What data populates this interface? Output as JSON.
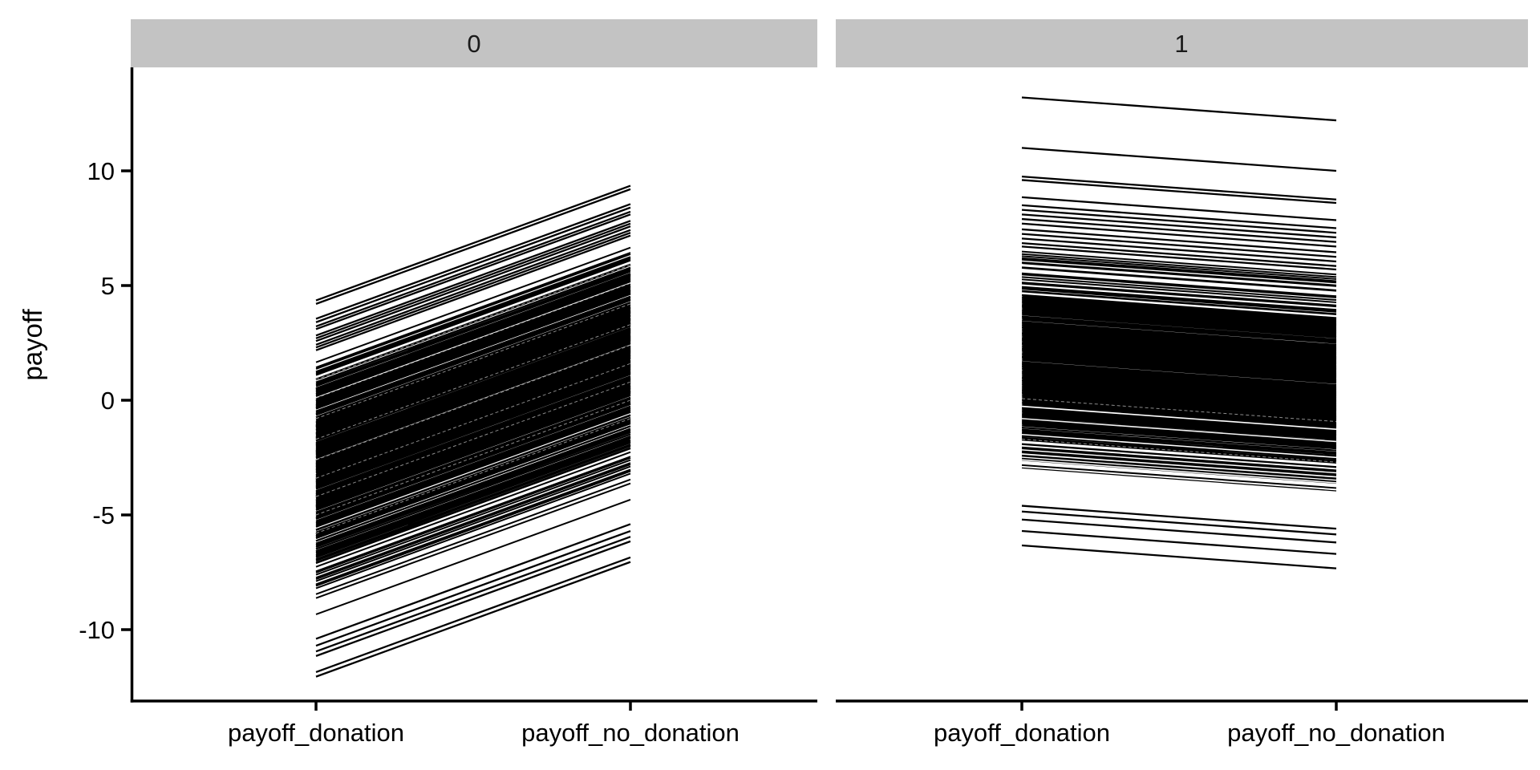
{
  "figure": {
    "background_color": "#FFFFFF",
    "panel_background": "#FFFFFF",
    "strip_background": "#C3C3C3",
    "axis_color": "#000000"
  },
  "chart_data": {
    "type": "line",
    "subtype": "paired-slopegraph-faceted",
    "title": "",
    "ylabel": "payoff",
    "xlabel": "",
    "x_categories": [
      "payoff_donation",
      "payoff_no_donation"
    ],
    "y_tick_labels": [
      "10",
      "5",
      "0",
      "-5",
      "-10"
    ],
    "y_tick_values": [
      10,
      5,
      0,
      -5,
      -10
    ],
    "ylim": [
      -13.1,
      14.5
    ],
    "grid": "off",
    "legend": "none",
    "line_color": "#000000",
    "gap_color": "#FFFFFF",
    "seed": 7,
    "facets": [
      {
        "label": "0",
        "shift_no_donation_minus_donation": 5.0,
        "payoff_donation_range": [
          -12.05,
          4.35
        ],
        "payoff_no_donation_range": [
          -7.05,
          9.35
        ],
        "mass": {
          "n": 390,
          "mean": -2.7,
          "sd": 2.55,
          "clip_min": -10.2,
          "clip_max": 1.8
        },
        "outlier_donation_values": [
          4.35,
          4.2,
          3.55,
          3.4,
          3.22,
          3.1,
          2.82,
          2.7,
          2.58,
          2.42,
          2.3,
          2.18,
          -10.4,
          -10.7,
          -10.95,
          -11.15,
          -11.85,
          -12.05
        ],
        "gap_streak_values_faint": [
          0.9,
          0.1,
          -0.8,
          -1.7,
          -2.6,
          -3.4,
          -4.2,
          -5.0,
          -5.8
        ],
        "gap_streak_values_bright": []
      },
      {
        "label": "1",
        "shift_no_donation_minus_donation": -1.0,
        "payoff_donation_range": [
          -6.33,
          13.2
        ],
        "payoff_no_donation_range": [
          -7.33,
          12.2
        ],
        "mass": {
          "n": 390,
          "mean": 1.9,
          "sd": 2.15,
          "clip_min": -4.35,
          "clip_max": 6.55
        },
        "outlier_donation_values": [
          13.2,
          11.0,
          9.75,
          9.6,
          8.85,
          8.5,
          8.3,
          8.1,
          7.9,
          7.7,
          7.45,
          7.25,
          7.05,
          6.85,
          6.7,
          -4.6,
          -4.85,
          -5.2,
          -5.7,
          -6.33
        ],
        "gap_streak_values_faint": [
          0.07,
          -1.7
        ],
        "gap_streak_values_bright": [
          -0.8,
          -2.6,
          -3.0
        ]
      }
    ]
  }
}
